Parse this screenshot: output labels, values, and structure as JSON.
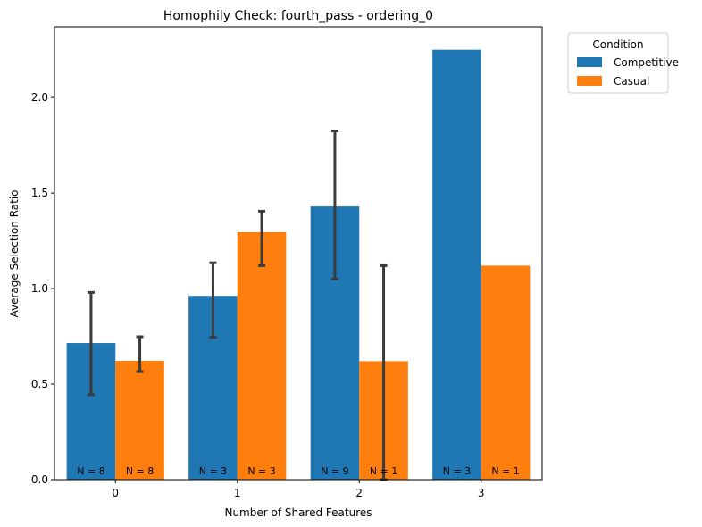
{
  "chart_data": {
    "type": "bar",
    "title": "Homophily Check: fourth_pass - ordering_0",
    "xlabel": "Number of Shared Features",
    "ylabel": "Average Selection Ratio",
    "categories": [
      "0",
      "1",
      "2",
      "3"
    ],
    "ylim": [
      0,
      2.37
    ],
    "yticks": [
      "0.0",
      "0.5",
      "1.0",
      "1.5",
      "2.0"
    ],
    "legend": {
      "title": "Condition",
      "placement": "outside-top-right"
    },
    "series": [
      {
        "name": "Competitive",
        "color": "#1f77b4",
        "values": [
          0.715,
          0.962,
          1.43,
          2.25
        ],
        "error_low": [
          0.445,
          0.745,
          1.05,
          null
        ],
        "error_high": [
          0.98,
          1.135,
          1.825,
          null
        ],
        "n_labels": [
          "N = 8",
          "N = 3",
          "N = 9",
          "N = 3"
        ]
      },
      {
        "name": "Casual",
        "color": "#ff7f0e",
        "values": [
          0.622,
          1.295,
          0.62,
          1.12
        ],
        "error_low": [
          0.565,
          1.12,
          0.0,
          null
        ],
        "error_high": [
          0.748,
          1.405,
          1.12,
          null
        ],
        "n_labels": [
          "N = 8",
          "N = 3",
          "N = 1",
          "N = 1"
        ]
      }
    ],
    "error_bar_color": "#3b3b3b",
    "grid": false
  }
}
